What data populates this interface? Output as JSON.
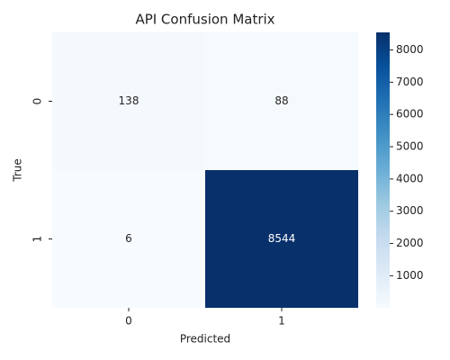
{
  "chart_data": {
    "type": "heatmap",
    "title": "API Confusion Matrix",
    "x_label": "Predicted",
    "y_label": "True",
    "x_categories": [
      "0",
      "1"
    ],
    "y_categories": [
      "0",
      "1"
    ],
    "values": [
      [
        138,
        88
      ],
      [
        6,
        8544
      ]
    ],
    "colormap": "Blues",
    "clim": [
      6,
      8544
    ],
    "colorbar_ticks": [
      1000,
      2000,
      3000,
      4000,
      5000,
      6000,
      7000,
      8000
    ]
  }
}
